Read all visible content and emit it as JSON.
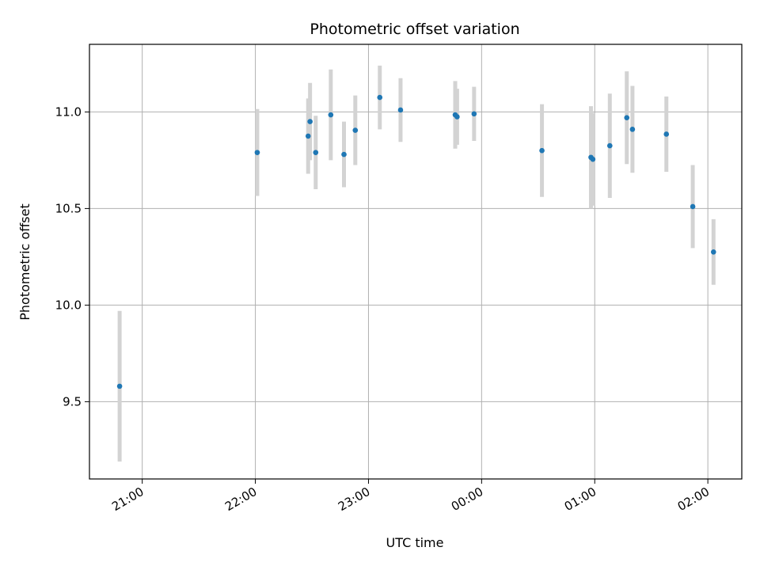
{
  "chart_data": {
    "type": "scatter",
    "title": "Photometric offset variation",
    "xlabel": "UTC time",
    "ylabel": "Photometric offset",
    "x_ticks": [
      "21:00",
      "22:00",
      "23:00",
      "00:00",
      "01:00",
      "02:00"
    ],
    "y_ticks": [
      "9.5",
      "10.0",
      "10.5",
      "11.0"
    ],
    "xlim": [
      "20:32",
      "02:18"
    ],
    "ylim": [
      9.1,
      11.35
    ],
    "grid": true,
    "colors": {
      "point": "#1f77b4",
      "errorbar": "#d3d3d3",
      "grid": "#b0b0b0"
    },
    "points": [
      {
        "x": "20:48",
        "y": 9.58,
        "err": 0.39
      },
      {
        "x": "22:01",
        "y": 10.79,
        "err": 0.225
      },
      {
        "x": "22:28",
        "y": 10.875,
        "err": 0.195
      },
      {
        "x": "22:29",
        "y": 10.95,
        "err": 0.2
      },
      {
        "x": "22:32",
        "y": 10.79,
        "err": 0.19
      },
      {
        "x": "22:40",
        "y": 10.985,
        "err": 0.235
      },
      {
        "x": "22:47",
        "y": 10.78,
        "err": 0.17
      },
      {
        "x": "22:53",
        "y": 10.905,
        "err": 0.18
      },
      {
        "x": "23:06",
        "y": 11.075,
        "err": 0.165
      },
      {
        "x": "23:17",
        "y": 11.01,
        "err": 0.165
      },
      {
        "x": "23:46",
        "y": 10.985,
        "err": 0.175
      },
      {
        "x": "23:47",
        "y": 10.975,
        "err": 0.145
      },
      {
        "x": "23:56",
        "y": 10.99,
        "err": 0.14
      },
      {
        "x": "00:32",
        "y": 10.8,
        "err": 0.24
      },
      {
        "x": "00:58",
        "y": 10.765,
        "err": 0.265
      },
      {
        "x": "00:59",
        "y": 10.755,
        "err": 0.24
      },
      {
        "x": "01:08",
        "y": 10.825,
        "err": 0.27
      },
      {
        "x": "01:17",
        "y": 10.97,
        "err": 0.24
      },
      {
        "x": "01:20",
        "y": 10.91,
        "err": 0.225
      },
      {
        "x": "01:38",
        "y": 10.885,
        "err": 0.195
      },
      {
        "x": "01:52",
        "y": 10.51,
        "err": 0.215
      },
      {
        "x": "02:03",
        "y": 10.275,
        "err": 0.17
      }
    ]
  }
}
